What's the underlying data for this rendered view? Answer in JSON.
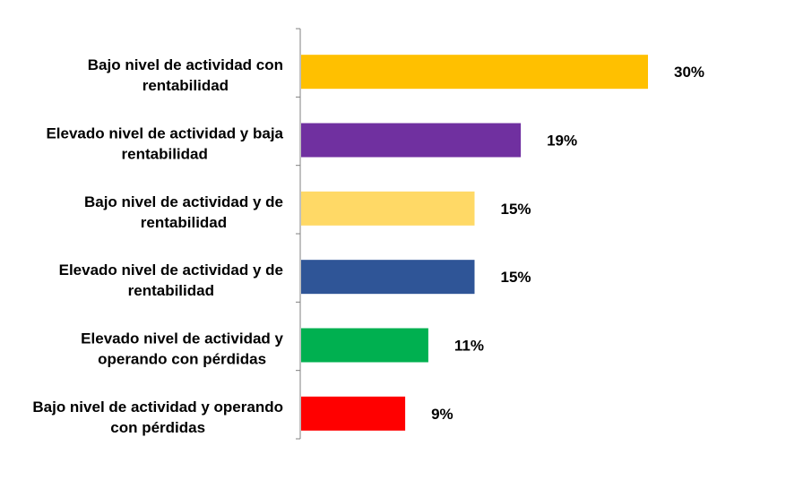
{
  "chart_data": {
    "type": "bar",
    "orientation": "horizontal",
    "categories": [
      [
        "Bajo nivel de actividad con",
        "rentabilidad"
      ],
      [
        "Elevado nivel de actividad y baja",
        "rentabilidad"
      ],
      [
        "Bajo nivel de actividad y de",
        "rentabilidad"
      ],
      [
        "Elevado nivel de actividad y de",
        "rentabilidad"
      ],
      [
        "Elevado nivel de actividad y",
        "operando con pérdidas"
      ],
      [
        "Bajo nivel de actividad y operando",
        "con pérdidas"
      ]
    ],
    "values": [
      30,
      19,
      15,
      15,
      11,
      9
    ],
    "value_labels": [
      "30%",
      "19%",
      "15%",
      "15%",
      "11%",
      "9%"
    ],
    "colors": [
      "#FFC000",
      "#7030A0",
      "#FFD966",
      "#2F5597",
      "#00B050",
      "#FF0000"
    ],
    "xlim": [
      0,
      30
    ],
    "grid": false,
    "legend": "none"
  }
}
